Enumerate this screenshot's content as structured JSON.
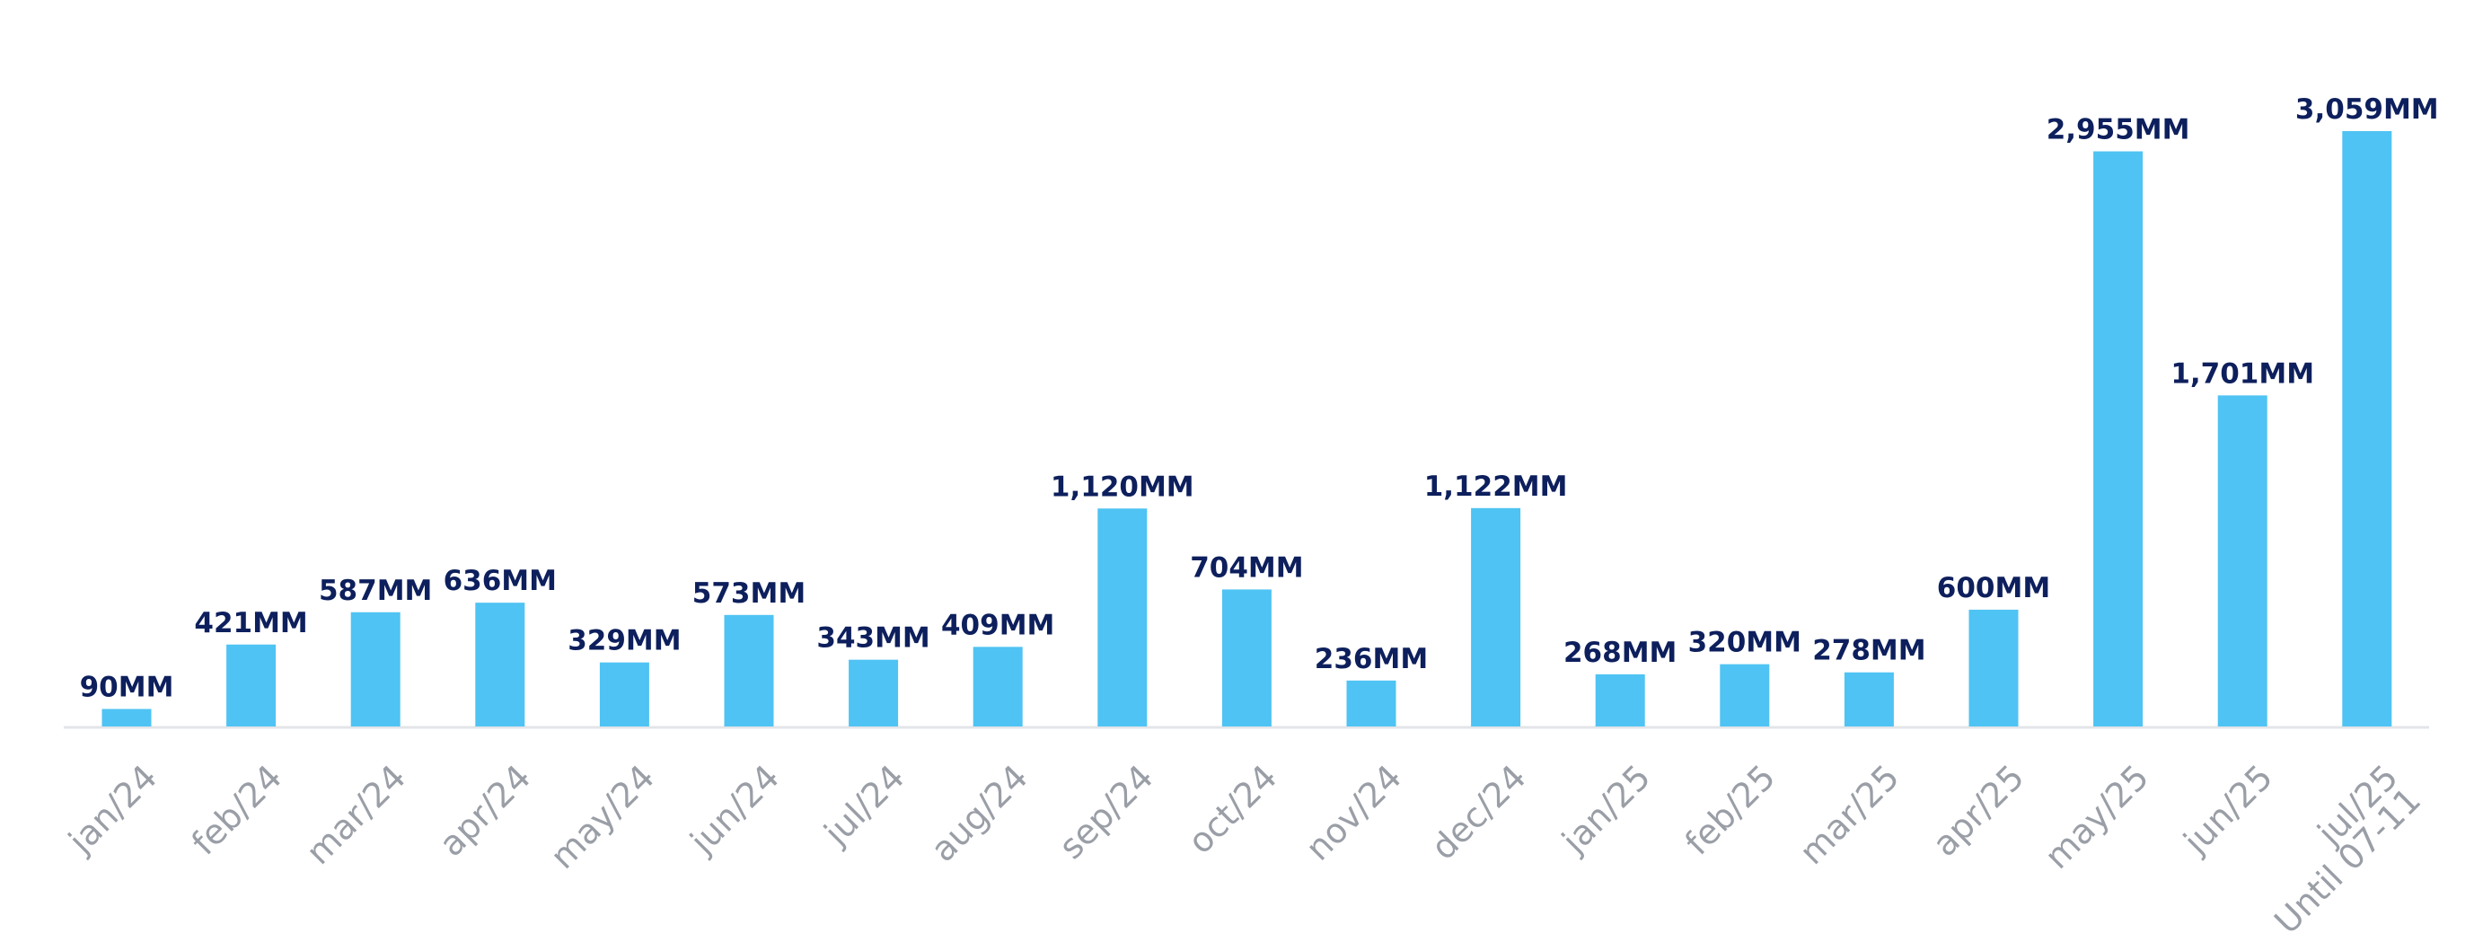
{
  "chart_data": {
    "type": "bar",
    "categories": [
      "jan/24",
      "feb/24",
      "mar/24",
      "apr/24",
      "may/24",
      "jun/24",
      "jul/24",
      "aug/24",
      "sep/24",
      "oct/24",
      "nov/24",
      "dec/24",
      "jan/25",
      "feb/25",
      "mar/25",
      "apr/25",
      "may/25",
      "jun/25",
      "jul/25\nUntil 07-11"
    ],
    "values": [
      90,
      421,
      587,
      636,
      329,
      573,
      343,
      409,
      1120,
      704,
      236,
      1122,
      268,
      320,
      278,
      600,
      2955,
      1701,
      3059
    ],
    "value_labels": [
      "90MM",
      "421MM",
      "587MM",
      "636MM",
      "329MM",
      "573MM",
      "343MM",
      "409MM",
      "1,120MM",
      "704MM",
      "236MM",
      "1,122MM",
      "268MM",
      "320MM",
      "278MM",
      "600MM",
      "2,955MM",
      "1,701MM",
      "3,059MM"
    ],
    "color": "#4fc3f3"
  }
}
